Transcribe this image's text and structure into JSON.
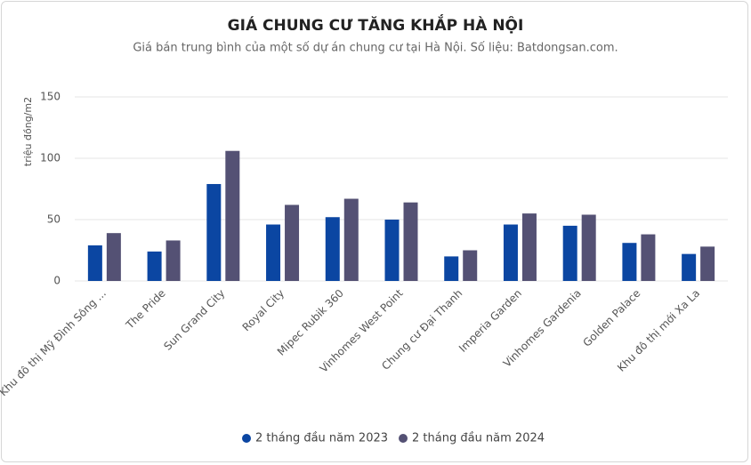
{
  "chart_data": {
    "type": "bar",
    "title": "GIÁ CHUNG CƯ TĂNG KHẮP HÀ NỘI",
    "subtitle": "Giá bán trung bình của một số dự án chung cư tại Hà Nội. Số liệu: Batdongsan.com.",
    "y_label": "triệu đồng/m2",
    "categories": [
      "Khu đô thị Mỹ Đình Sông ...",
      "The Pride",
      "Sun Grand City",
      "Royal City",
      "Mipec Rubik 360",
      "Vinhomes West Point",
      "Chung cư Đại Thanh",
      "Imperia Garden",
      "Vinhomes Gardenia",
      "Golden Palace",
      "Khu đô thị mới Xa La"
    ],
    "series": [
      {
        "name": "2 tháng đầu năm 2023",
        "color": "#0b46a2",
        "values": [
          29,
          24,
          79,
          46,
          52,
          50,
          20,
          46,
          45,
          31,
          22
        ]
      },
      {
        "name": "2 tháng đầu năm 2024",
        "color": "#545174",
        "values": [
          39,
          33,
          106,
          62,
          67,
          64,
          25,
          55,
          54,
          38,
          28
        ]
      }
    ],
    "ylim": [
      0,
      150
    ],
    "yticks": [
      0,
      50,
      100,
      150
    ],
    "grid": true,
    "legend": "bottom"
  }
}
